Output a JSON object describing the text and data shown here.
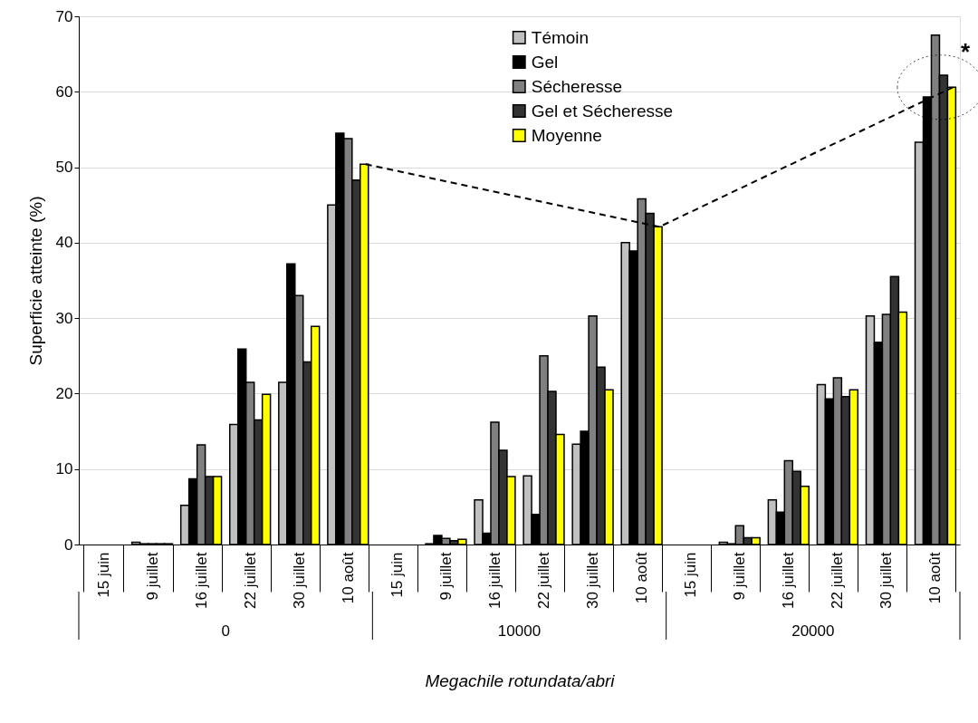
{
  "chart_data": {
    "type": "bar",
    "categories": [
      "15 juin",
      "9 juillet",
      "16 juillet",
      "22 juillet",
      "30 juillet",
      "10 août",
      "15 juin",
      "9 juillet",
      "16 juillet",
      "22 juillet",
      "30 juillet",
      "10 août",
      "15 juin",
      "9 juillet",
      "16 juillet",
      "22 juillet",
      "30 juillet",
      "10 août"
    ],
    "xlabel": "Megachile rotundata/abri",
    "ylabel": "Superficie atteinte (%)",
    "ylim": [
      0,
      70
    ],
    "yticks": [
      0,
      10,
      20,
      30,
      40,
      50,
      60,
      70
    ],
    "grid": "y",
    "legend": "top",
    "annotations": [
      "*",
      "0",
      "10000",
      "20000"
    ],
    "series": [
      {
        "name": "Témoin",
        "color": "#c0c0c0",
        "values": [
          null,
          0.3,
          5.2,
          15.9,
          21.5,
          45.0,
          null,
          0.1,
          5.9,
          9.1,
          13.3,
          40.0,
          null,
          0.3,
          5.9,
          21.2,
          30.3,
          53.3
        ]
      },
      {
        "name": "Gel",
        "color": "#000000",
        "values": [
          null,
          0.1,
          8.7,
          25.9,
          37.2,
          54.5,
          null,
          1.2,
          1.5,
          4.0,
          15.0,
          38.9,
          null,
          0.1,
          4.3,
          19.3,
          26.8,
          59.3
        ]
      },
      {
        "name": "Sécheresse",
        "color": "#808080",
        "values": [
          null,
          0.1,
          13.2,
          21.5,
          33.0,
          53.8,
          null,
          0.8,
          16.2,
          25.0,
          30.3,
          45.8,
          null,
          2.5,
          11.1,
          22.1,
          30.5,
          67.5
        ]
      },
      {
        "name": "Gel et Sécheresse",
        "color": "#333333",
        "values": [
          null,
          0.1,
          9.0,
          16.5,
          24.2,
          48.3,
          null,
          0.5,
          12.5,
          20.3,
          23.5,
          43.9,
          null,
          0.9,
          9.7,
          19.6,
          35.5,
          62.2
        ]
      },
      {
        "name": "Moyenne",
        "color": "#ffff00",
        "values": [
          null,
          0.1,
          9.0,
          19.9,
          28.9,
          50.4,
          null,
          0.7,
          9.0,
          14.6,
          20.5,
          42.1,
          null,
          0.9,
          7.7,
          20.5,
          30.8,
          60.6
        ]
      },
      {
        "type": "line",
        "color": "#000000",
        "line_style": "dashed",
        "marker": "none",
        "values": [
          null,
          null,
          null,
          null,
          null,
          50.4,
          null,
          null,
          null,
          null,
          null,
          42.1,
          null,
          null,
          null,
          null,
          null,
          60.6
        ]
      }
    ]
  }
}
